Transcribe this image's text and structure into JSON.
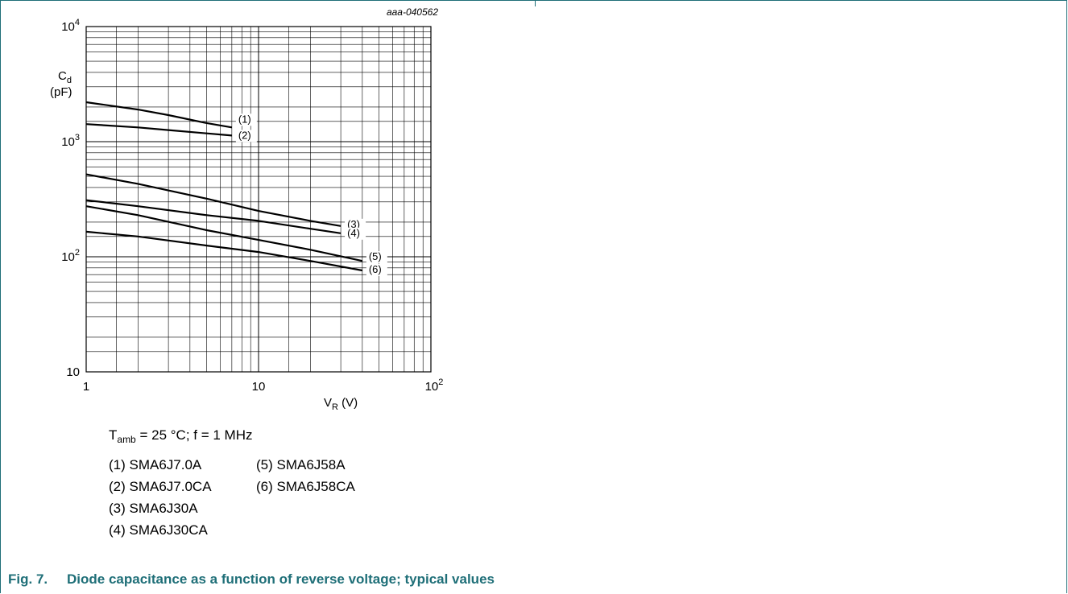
{
  "chart_data": {
    "type": "line",
    "doc_code": "aaa-040562",
    "xscale": "log",
    "yscale": "log",
    "xlim": [
      1,
      100
    ],
    "ylim": [
      10,
      10000
    ],
    "xlabel_main": "V",
    "xlabel_sub": "R",
    "xlabel_unit": "(V)",
    "ylabel_main": "C",
    "ylabel_sub": "d",
    "ylabel_unit": "(pF)",
    "x_ticks": [
      {
        "value": 1,
        "base": "1",
        "exp": ""
      },
      {
        "value": 10,
        "base": "10",
        "exp": ""
      },
      {
        "value": 100,
        "base": "10",
        "exp": "2"
      }
    ],
    "y_ticks": [
      {
        "value": 10,
        "base": "10",
        "exp": ""
      },
      {
        "value": 100,
        "base": "10",
        "exp": "2"
      },
      {
        "value": 1000,
        "base": "10",
        "exp": "3"
      },
      {
        "value": 10000,
        "base": "10",
        "exp": "4"
      }
    ],
    "grid": true,
    "series": [
      {
        "name": "(1)",
        "x": [
          1,
          2,
          3,
          5,
          7
        ],
        "y": [
          2200,
          1900,
          1700,
          1450,
          1330
        ]
      },
      {
        "name": "(2)",
        "x": [
          1,
          2,
          3,
          5,
          7
        ],
        "y": [
          1420,
          1330,
          1260,
          1180,
          1130
        ]
      },
      {
        "name": "(3)",
        "x": [
          1,
          2,
          5,
          10,
          20,
          30
        ],
        "y": [
          520,
          430,
          320,
          250,
          205,
          185
        ]
      },
      {
        "name": "(4)",
        "x": [
          1,
          2,
          5,
          10,
          20,
          30
        ],
        "y": [
          310,
          275,
          230,
          205,
          175,
          160
        ]
      },
      {
        "name": "(5)",
        "x": [
          1,
          2,
          5,
          10,
          20,
          40
        ],
        "y": [
          275,
          230,
          170,
          140,
          115,
          92
        ]
      },
      {
        "name": "(6)",
        "x": [
          1,
          2,
          5,
          10,
          20,
          40
        ],
        "y": [
          165,
          150,
          125,
          110,
          92,
          76
        ]
      }
    ]
  },
  "conditions": {
    "t_main": "T",
    "t_sub": "amb",
    "rest": " = 25 °C; f = 1 MHz"
  },
  "legend": {
    "col1": [
      "(1) SMA6J7.0A",
      "(2) SMA6J7.0CA",
      "(3) SMA6J30A",
      "(4) SMA6J30CA"
    ],
    "col2": [
      "(5) SMA6J58A",
      "(6) SMA6J58CA"
    ]
  },
  "caption": {
    "number": "Fig. 7.",
    "title": "Diode capacitance as a function of reverse voltage; typical values"
  },
  "colors": {
    "caption": "#1f6f78",
    "frame": "#1f6f78"
  }
}
